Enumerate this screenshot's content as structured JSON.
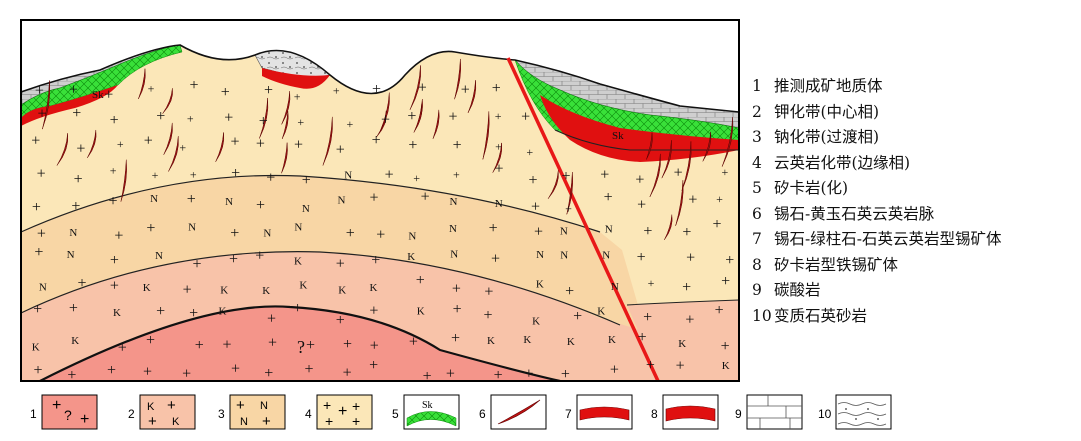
{
  "section": {
    "sk_label": "Sk",
    "unknown_mark": "?",
    "k_mark": "K",
    "n_mark": "N"
  },
  "legend": [
    {
      "num": "1",
      "label": "推测成矿地质体"
    },
    {
      "num": "2",
      "label": "钾化带(中心相)"
    },
    {
      "num": "3",
      "label": "钠化带(过渡相)"
    },
    {
      "num": "4",
      "label": "云英岩化带(边缘相)"
    },
    {
      "num": "5",
      "label": "矽卡岩(化)"
    },
    {
      "num": "6",
      "label": "锡石-黄玉石英云英岩脉"
    },
    {
      "num": "7",
      "label": "锡石-绿柱石-石英云英岩型锡矿体"
    },
    {
      "num": "8",
      "label": "矽卡岩型铁锡矿体"
    },
    {
      "num": "9",
      "label": "碳酸岩"
    },
    {
      "num": "10",
      "label": "变质石英砂岩"
    }
  ],
  "colors": {
    "granite_core": "#f4958a",
    "potassic": "#f8c3a9",
    "sodic": "#f8d6a5",
    "greisen": "#fbe7b8",
    "skarn": "#2ee02e",
    "ore": "#e01010",
    "carbonate": "#c8c8c8",
    "quartzite": "#d8d8d8",
    "fault": "#e81818"
  }
}
